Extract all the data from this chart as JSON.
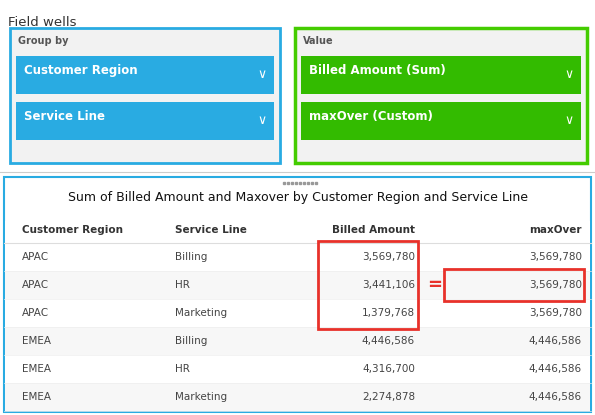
{
  "field_wells_label": "Field wells",
  "group_by_label": "Group by",
  "value_label": "Value",
  "group_by_items": [
    "Customer Region",
    "Service Line"
  ],
  "value_items": [
    "Billed Amount (Sum)",
    "maxOver (Custom)"
  ],
  "group_by_box_color": "#29ABE2",
  "group_by_border_color": "#29ABE2",
  "value_box_color": "#33BB00",
  "value_border_color": "#44CC00",
  "table_title": "Sum of Billed Amount and Maxover by Customer Region and Service Line",
  "col_headers": [
    "Customer Region",
    "Service Line",
    "Billed Amount",
    "maxOver"
  ],
  "table_data": [
    [
      "APAC",
      "Billing",
      "3,569,780",
      "3,569,780"
    ],
    [
      "APAC",
      "HR",
      "3,441,106",
      "3,569,780"
    ],
    [
      "APAC",
      "Marketing",
      "1,379,768",
      "3,569,780"
    ],
    [
      "EMEA",
      "Billing",
      "4,446,586",
      "4,446,586"
    ],
    [
      "EMEA",
      "HR",
      "4,316,700",
      "4,446,586"
    ],
    [
      "EMEA",
      "Marketing",
      "2,274,878",
      "4,446,586"
    ]
  ],
  "highlight_color": "#E8312A",
  "bg_color": "#FFFFFF",
  "table_border_color": "#29ABE2",
  "separator_color": "#CCCCCC",
  "dots_color": "#999999",
  "row_alt_color": "#F7F7F7",
  "header_bg": "#F0F0F0"
}
